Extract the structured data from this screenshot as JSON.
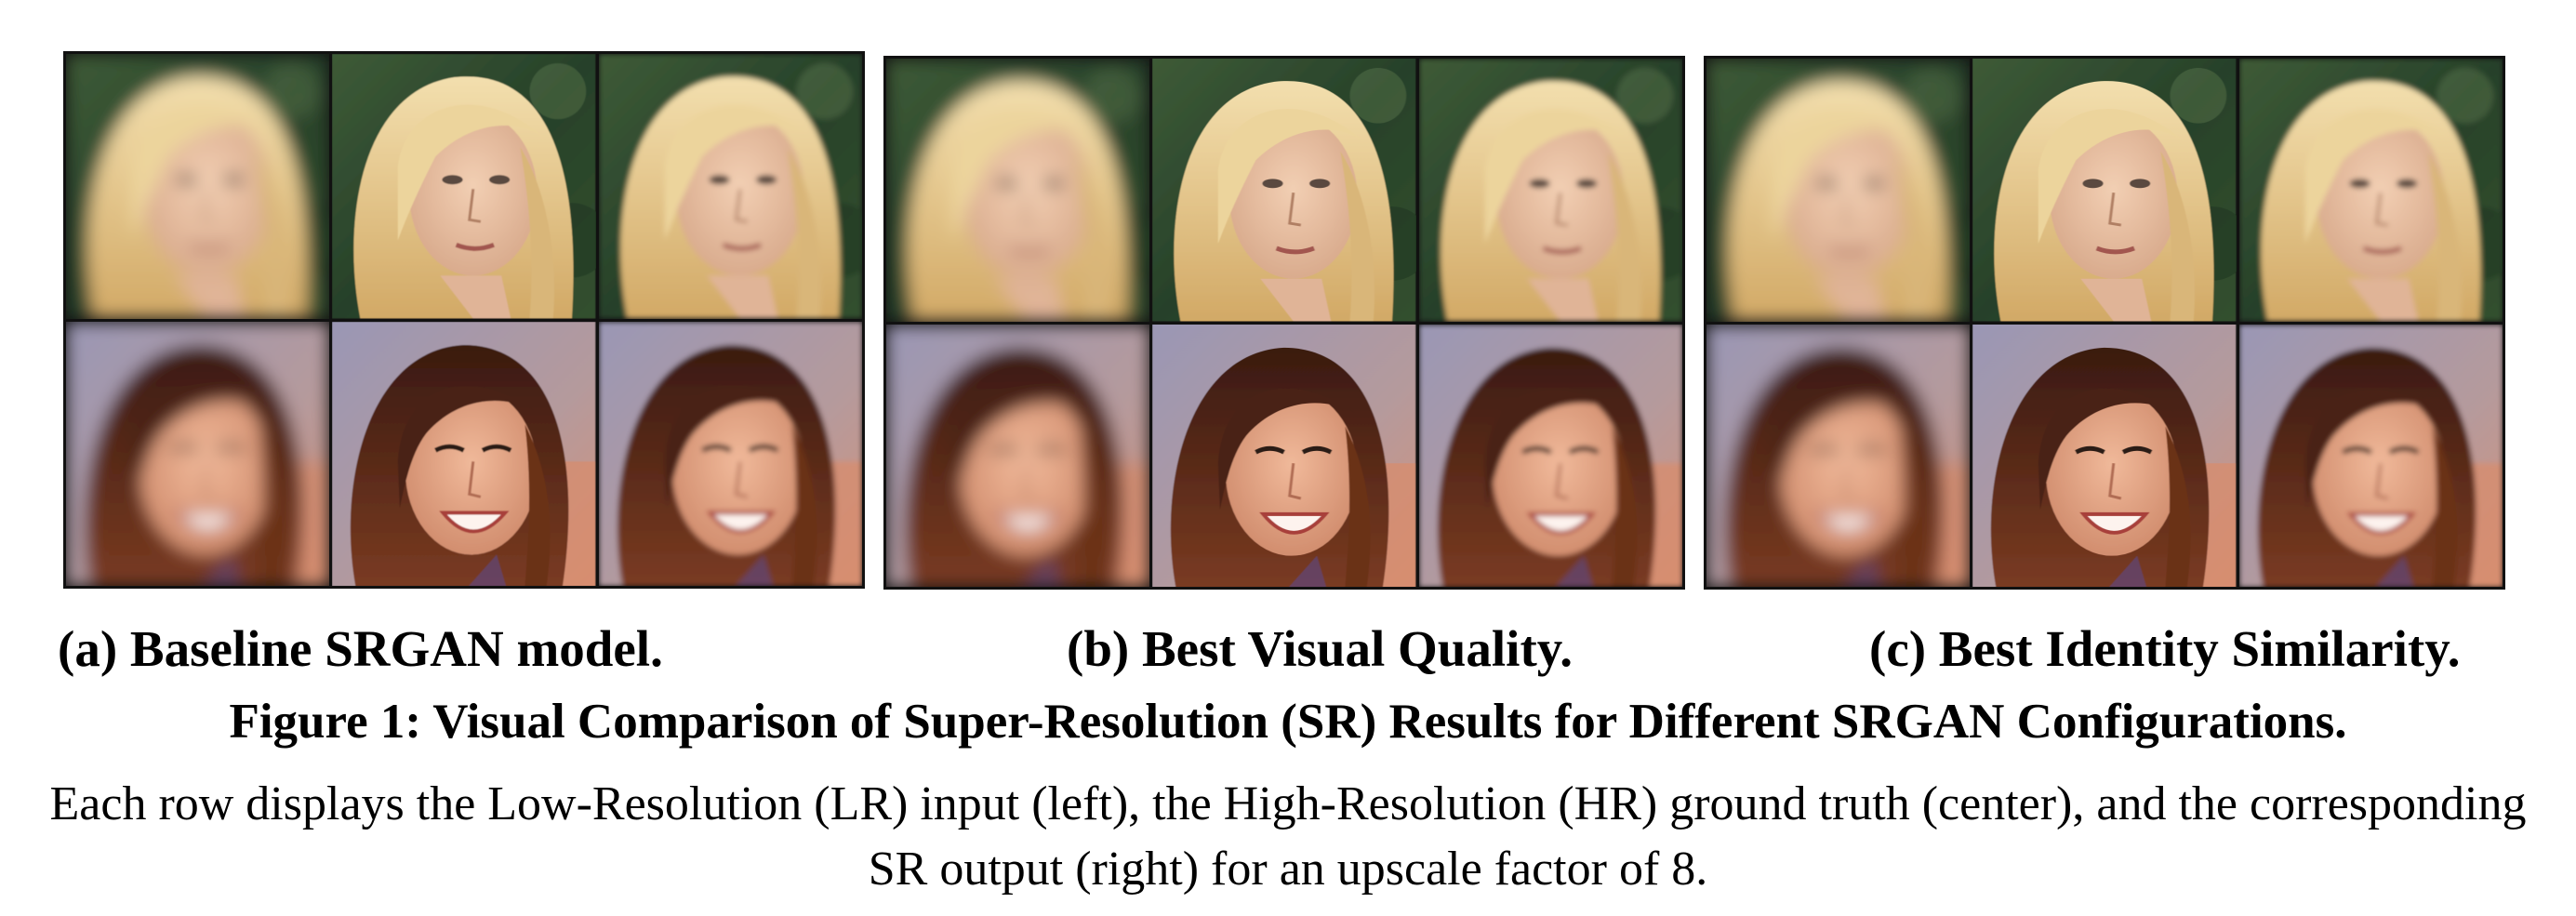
{
  "panels": [
    {
      "id": "a",
      "caption": "(a) Baseline SRGAN model."
    },
    {
      "id": "b",
      "caption": "(b) Best Visual Quality."
    },
    {
      "id": "c",
      "caption": "(c) Best Identity Similarity."
    }
  ],
  "rows": [
    {
      "subject": "blonde-woman",
      "cells": [
        "LR input",
        "HR ground truth",
        "SR output"
      ]
    },
    {
      "subject": "smiling-woman",
      "cells": [
        "LR input",
        "HR ground truth",
        "SR output"
      ]
    }
  ],
  "figure": {
    "title": "Figure 1: Visual Comparison of Super-Resolution (SR) Results for Different SRGAN Configurations.",
    "description": "Each row displays the Low-Resolution (LR) input (left), the High-Resolution (HR) ground truth (center), and the corresponding SR output (right) for an upscale factor of 8."
  },
  "colors": {
    "border": "#111111",
    "foliage_bg": "#2f4a2c",
    "blonde_hair": "#e2c58a",
    "skin_light": "#e9c2a4",
    "pool_bg": "#8d8fa8",
    "brown_hair": "#4a2416",
    "skin_warm": "#d9957a"
  }
}
